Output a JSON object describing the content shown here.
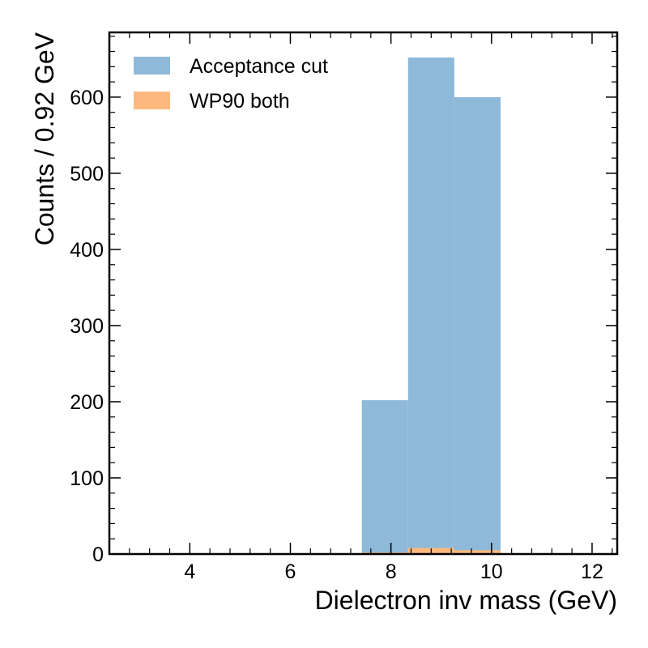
{
  "chart_data": {
    "type": "bar",
    "title": "",
    "xlabel": "Dielectron inv mass (GeV)",
    "ylabel": "Counts / 0.92 GeV",
    "xlim": [
      2.4,
      12.5
    ],
    "ylim": [
      0,
      685
    ],
    "x_ticks": [
      4,
      6,
      8,
      10,
      12
    ],
    "y_ticks": [
      0,
      100,
      200,
      300,
      400,
      500,
      600
    ],
    "x_tick_labels": [
      "4",
      "6",
      "8",
      "10",
      "12"
    ],
    "y_tick_labels": [
      "0",
      "100",
      "200",
      "300",
      "400",
      "500",
      "600"
    ],
    "grid": false,
    "legend_position": "top-left",
    "bin_edges": [
      7.42,
      8.34,
      9.26,
      10.18
    ],
    "series": [
      {
        "name": "Acceptance cut",
        "color": "#8fb9d9",
        "values": [
          202,
          652,
          600
        ]
      },
      {
        "name": "WP90 both",
        "color": "#fdb97d",
        "values": [
          2,
          8,
          5
        ]
      }
    ]
  }
}
